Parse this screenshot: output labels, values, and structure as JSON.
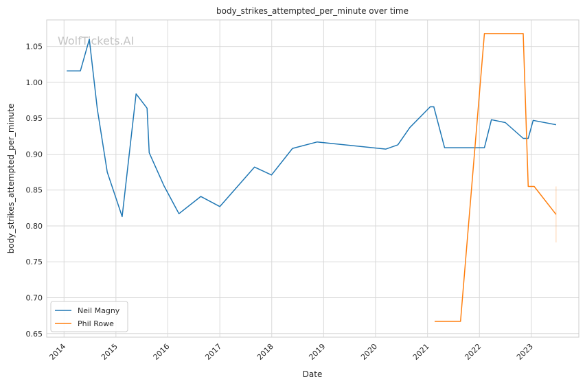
{
  "chart_data": {
    "type": "line",
    "title": "body_strikes_attempted_per_minute over time",
    "xlabel": "Date",
    "ylabel": "body_strikes_attempted_per_minute",
    "watermark": "WolfTickets.AI",
    "grid": true,
    "legend_position": "lower-left",
    "x_ticks": [
      "2014",
      "2015",
      "2016",
      "2017",
      "2018",
      "2019",
      "2020",
      "2021",
      "2022",
      "2023"
    ],
    "y_ticks": [
      "0.65",
      "0.70",
      "0.75",
      "0.80",
      "0.85",
      "0.90",
      "0.95",
      "1.00",
      "1.05"
    ],
    "xlim": [
      "2013-09-01",
      "2023-12-01"
    ],
    "ylim": [
      0.645,
      1.087
    ],
    "series": [
      {
        "name": "Neil Magny",
        "color": "#1f77b4",
        "points": [
          [
            "2014-01-20",
            1.016
          ],
          [
            "2014-04-26",
            1.016
          ],
          [
            "2014-06-28",
            1.06
          ],
          [
            "2014-08-23",
            0.963
          ],
          [
            "2014-11-01",
            0.875
          ],
          [
            "2015-02-14",
            0.813
          ],
          [
            "2015-05-23",
            0.984
          ],
          [
            "2015-08-08",
            0.964
          ],
          [
            "2015-08-23",
            0.902
          ],
          [
            "2015-12-05",
            0.856
          ],
          [
            "2016-03-19",
            0.817
          ],
          [
            "2016-08-20",
            0.841
          ],
          [
            "2017-01-01",
            0.827
          ],
          [
            "2017-09-02",
            0.882
          ],
          [
            "2017-12-30",
            0.871
          ],
          [
            "2018-05-27",
            0.908
          ],
          [
            "2018-11-17",
            0.917
          ],
          [
            "2020-03-14",
            0.907
          ],
          [
            "2020-06-06",
            0.913
          ],
          [
            "2020-08-29",
            0.937
          ],
          [
            "2021-01-20",
            0.966
          ],
          [
            "2021-02-14",
            0.966
          ],
          [
            "2021-05-01",
            0.909
          ],
          [
            "2021-07-10",
            0.909
          ],
          [
            "2022-02-05",
            0.909
          ],
          [
            "2022-03-26",
            0.948
          ],
          [
            "2022-07-02",
            0.944
          ],
          [
            "2022-11-05",
            0.922
          ],
          [
            "2022-12-10",
            0.922
          ],
          [
            "2023-01-14",
            0.947
          ],
          [
            "2023-06-24",
            0.941
          ]
        ]
      },
      {
        "name": "Phil Rowe",
        "color": "#ff7f0e",
        "points": [
          [
            "2021-02-20",
            0.667
          ],
          [
            "2021-08-21",
            0.667
          ],
          [
            "2022-02-05",
            1.068
          ],
          [
            "2022-11-05",
            1.068
          ],
          [
            "2022-12-10",
            0.855
          ],
          [
            "2023-01-21",
            0.855
          ],
          [
            "2023-06-24",
            0.816
          ]
        ],
        "interval": {
          "x": "2023-06-24",
          "low": 0.777,
          "high": 0.855
        }
      }
    ]
  }
}
